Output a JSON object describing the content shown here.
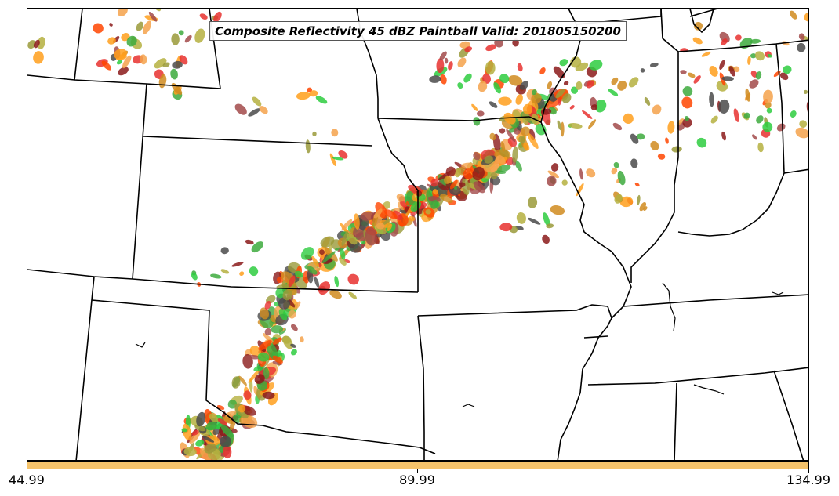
{
  "title": "Composite Reflectivity 45 dBZ Paintball Valid: 201805150200",
  "colorbar": {
    "color": "#f5c36a",
    "tick_labels": [
      "44.99",
      "89.99",
      "134.99"
    ]
  },
  "colors": {
    "member_palette": [
      "#e8312f",
      "#ff4500",
      "#f5a24b",
      "#ff9f1c",
      "#2ecc40",
      "#3daa3d",
      "#9a9a3a",
      "#b5b040",
      "#8b1a1a",
      "#a24a4a",
      "#4a4a4a",
      "#d08b1e"
    ],
    "state_lines": "#000000"
  }
}
